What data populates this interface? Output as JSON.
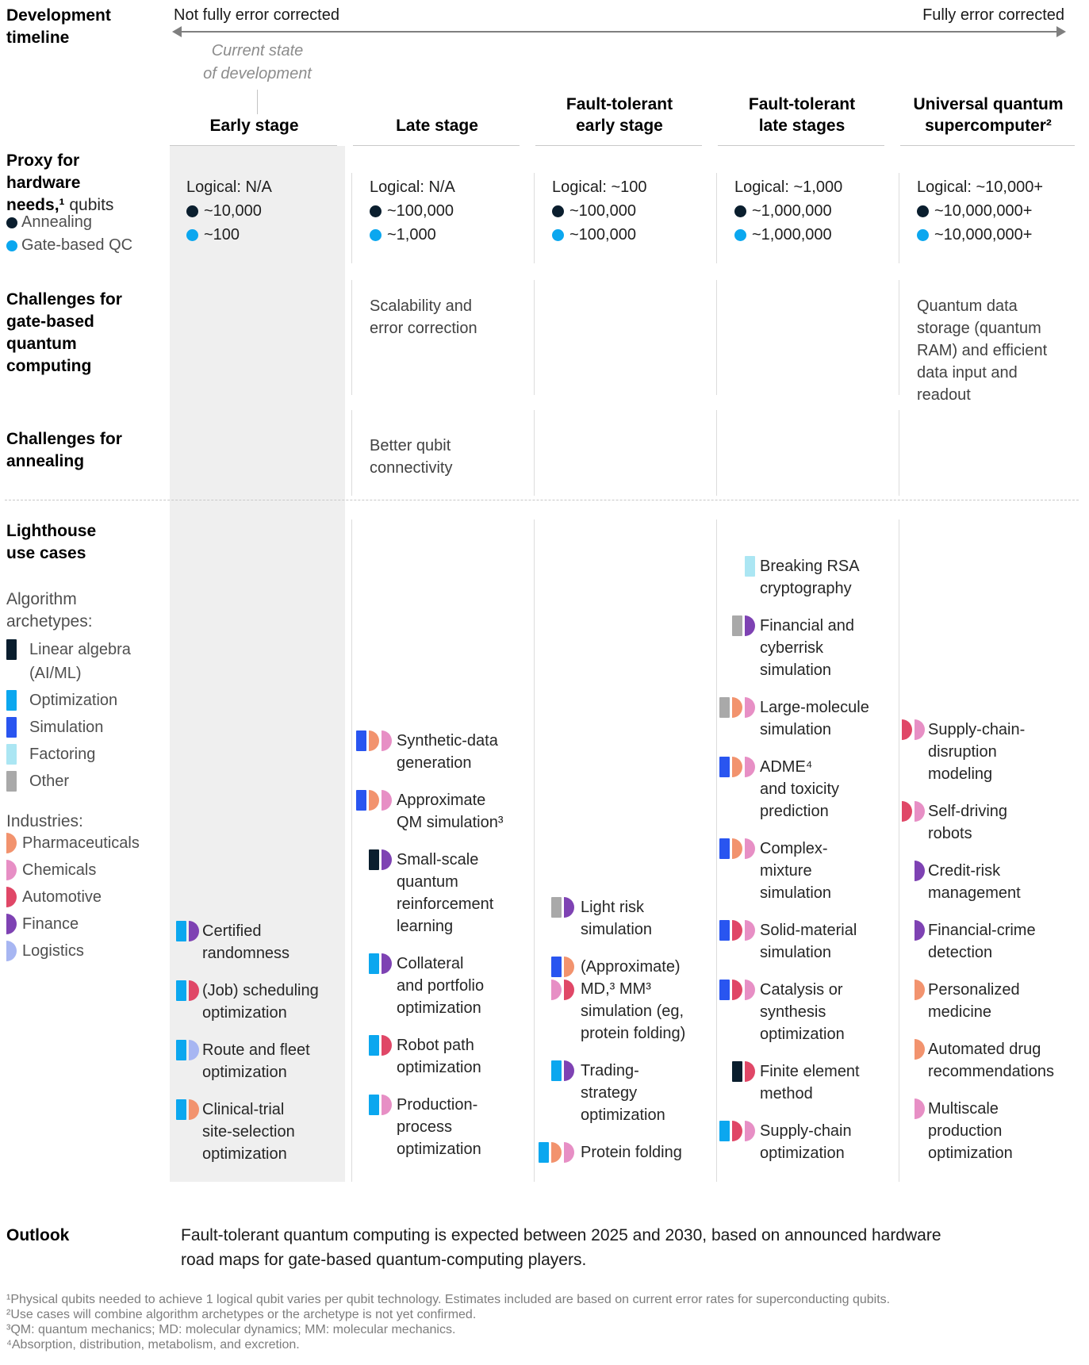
{
  "timeline": {
    "row_label": "Development\ntimeline",
    "left_end": "Not fully error corrected",
    "right_end": "Fully error corrected",
    "current_state": "Current state\nof development"
  },
  "hardware_row": {
    "label_bold": "Proxy for\nhardware\nneeds,¹",
    "label_regular": " qubits",
    "annealing_label": "Annealing",
    "gate_label": "Gate-based QC",
    "annealing_color": "#0a1e2e",
    "gate_color": "#0ba7ef"
  },
  "challenges_gate_label": "Challenges for\ngate-based\nquantum\ncomputing",
  "challenges_annealing_label": "Challenges for\nannealing",
  "columns": [
    {
      "id": "early",
      "header": "Early stage",
      "logical": "Logical: N/A",
      "annealing_qubits": "~10,000",
      "gate_qubits": "~100",
      "challenge_gate": "",
      "challenge_annealing": ""
    },
    {
      "id": "late",
      "header": "Late stage",
      "logical": "Logical: N/A",
      "annealing_qubits": "~100,000",
      "gate_qubits": "~1,000",
      "challenge_gate": "Scalability and\nerror correction",
      "challenge_annealing": "Better qubit\nconnectivity"
    },
    {
      "id": "ft_early",
      "header": "Fault-tolerant\nearly stage",
      "logical": "Logical: ~100",
      "annealing_qubits": "~100,000",
      "gate_qubits": "~100,000",
      "challenge_gate": "",
      "challenge_annealing": ""
    },
    {
      "id": "ft_late",
      "header": "Fault-tolerant\nlate stages",
      "logical": "Logical: ~1,000",
      "annealing_qubits": "~1,000,000",
      "gate_qubits": "~1,000,000",
      "challenge_gate": "",
      "challenge_annealing": ""
    },
    {
      "id": "universal",
      "header": "Universal quantum\nsupercomputer²",
      "logical": "Logical: ~10,000+",
      "annealing_qubits": "~10,000,000+",
      "gate_qubits": "~10,000,000+",
      "challenge_gate": "Quantum data\nstorage (quantum\nRAM) and efficient\ndata input and\nreadout",
      "challenge_annealing": ""
    }
  ],
  "lighthouse": {
    "row_label": "Lighthouse\nuse cases",
    "archetypes_title": "Algorithm\narchetypes:",
    "industries_title": "Industries:",
    "marker_defs": {
      "linear_algebra": {
        "label": "Linear algebra\n(AI/ML)",
        "color": "#0a1e2e",
        "shape": "rect"
      },
      "optimization": {
        "label": "Optimization",
        "color": "#0ba7ef",
        "shape": "rect"
      },
      "simulation": {
        "label": "Simulation",
        "color": "#2955f0",
        "shape": "rect"
      },
      "factoring": {
        "label": "Factoring",
        "color": "#abe6f3",
        "shape": "rect"
      },
      "other": {
        "label": "Other",
        "color": "#a9a9a9",
        "shape": "rect"
      },
      "pharmaceuticals": {
        "label": "Pharmaceuticals",
        "color": "#f2936e",
        "shape": "half"
      },
      "chemicals": {
        "label": "Chemicals",
        "color": "#e78fc5",
        "shape": "half"
      },
      "automotive": {
        "label": "Automotive",
        "color": "#e04767",
        "shape": "half"
      },
      "finance": {
        "label": "Finance",
        "color": "#7e42b3",
        "shape": "half"
      },
      "logistics": {
        "label": "Logistics",
        "color": "#a7b6f2",
        "shape": "half"
      }
    },
    "archetype_order": [
      "linear_algebra",
      "optimization",
      "simulation",
      "factoring",
      "other"
    ],
    "industry_order": [
      "pharmaceuticals",
      "chemicals",
      "automotive",
      "finance",
      "logistics"
    ],
    "use_cases": {
      "early": [
        {
          "text": "Certified\nrandomness",
          "markers": [
            [
              "optimization",
              "finance"
            ]
          ]
        },
        {
          "text": "(Job) scheduling\noptimization",
          "markers": [
            [
              "optimization",
              "automotive"
            ]
          ]
        },
        {
          "text": "Route and fleet\noptimization",
          "markers": [
            [
              "optimization",
              "logistics"
            ]
          ]
        },
        {
          "text": "Clinical-trial\nsite-selection\noptimization",
          "markers": [
            [
              "optimization",
              "pharmaceuticals"
            ]
          ]
        }
      ],
      "late": [
        {
          "text": "Synthetic-data\ngeneration",
          "markers": [
            [
              "simulation",
              "pharmaceuticals",
              "chemicals"
            ]
          ]
        },
        {
          "text": "Approximate\nQM simulation³",
          "markers": [
            [
              "simulation",
              "pharmaceuticals",
              "chemicals"
            ]
          ]
        },
        {
          "text": "Small-scale\nquantum\nreinforcement\nlearning",
          "markers": [
            [
              "linear_algebra",
              "finance"
            ]
          ]
        },
        {
          "text": "Collateral\nand portfolio\noptimization",
          "markers": [
            [
              "optimization",
              "finance"
            ]
          ]
        },
        {
          "text": "Robot path\noptimization",
          "markers": [
            [
              "optimization",
              "automotive"
            ]
          ]
        },
        {
          "text": "Production-\nprocess\noptimization",
          "markers": [
            [
              "optimization",
              "chemicals"
            ]
          ]
        }
      ],
      "ft_early": [
        {
          "text": "Light risk\nsimulation",
          "markers": [
            [
              "other",
              "finance"
            ]
          ]
        },
        {
          "text": "(Approximate)\nMD,³ MM³\nsimulation (eg,\nprotein folding)",
          "markers": [
            [
              "simulation",
              "pharmaceuticals"
            ],
            [
              "chemicals",
              "automotive"
            ]
          ]
        },
        {
          "text": "Trading-\nstrategy\noptimization",
          "markers": [
            [
              "optimization",
              "finance"
            ]
          ]
        },
        {
          "text": "Protein folding",
          "markers": [
            [
              "optimization",
              "pharmaceuticals",
              "chemicals"
            ]
          ]
        }
      ],
      "ft_late": [
        {
          "text": "Breaking RSA\ncryptography",
          "markers": [
            [
              "factoring"
            ]
          ]
        },
        {
          "text": "Financial and\ncyberrisk\nsimulation",
          "markers": [
            [
              "other",
              "finance"
            ]
          ]
        },
        {
          "text": "Large-molecule\nsimulation",
          "markers": [
            [
              "other",
              "pharmaceuticals",
              "chemicals"
            ]
          ]
        },
        {
          "text": "ADME⁴\nand toxicity\nprediction",
          "markers": [
            [
              "simulation",
              "pharmaceuticals",
              "chemicals"
            ]
          ]
        },
        {
          "text": "Complex-\nmixture\nsimulation",
          "markers": [
            [
              "simulation",
              "pharmaceuticals",
              "chemicals"
            ]
          ]
        },
        {
          "text": "Solid-material\nsimulation",
          "markers": [
            [
              "simulation",
              "automotive",
              "chemicals"
            ]
          ]
        },
        {
          "text": "Catalysis or\nsynthesis\noptimization",
          "markers": [
            [
              "simulation",
              "automotive",
              "chemicals"
            ]
          ]
        },
        {
          "text": "Finite element\nmethod",
          "markers": [
            [
              "linear_algebra",
              "automotive"
            ]
          ]
        },
        {
          "text": "Supply-chain\noptimization",
          "markers": [
            [
              "optimization",
              "automotive",
              "chemicals"
            ]
          ]
        }
      ],
      "universal": [
        {
          "text": "Supply-chain-\ndisruption\nmodeling",
          "markers": [
            [
              "automotive",
              "chemicals"
            ]
          ]
        },
        {
          "text": "Self-driving\nrobots",
          "markers": [
            [
              "automotive",
              "chemicals"
            ]
          ]
        },
        {
          "text": "Credit-risk\nmanagement",
          "markers": [
            [
              "finance"
            ]
          ]
        },
        {
          "text": "Financial-crime\ndetection",
          "markers": [
            [
              "finance"
            ]
          ]
        },
        {
          "text": "Personalized\nmedicine",
          "markers": [
            [
              "pharmaceuticals"
            ]
          ]
        },
        {
          "text": "Automated drug\nrecommendations",
          "markers": [
            [
              "pharmaceuticals"
            ]
          ]
        },
        {
          "text": "Multiscale\nproduction\noptimization",
          "markers": [
            [
              "chemicals"
            ]
          ]
        }
      ]
    }
  },
  "outlook": {
    "label": "Outlook",
    "text": "Fault-tolerant quantum computing is expected between 2025 and 2030, based on announced hardware\nroad maps for gate-based quantum-computing players."
  },
  "footnotes": [
    "¹Physical qubits needed to achieve 1 logical qubit varies per qubit technology. Estimates included are based on current error rates for superconducting qubits.",
    "²Use cases will combine algorithm archetypes or the archetype is not yet confirmed.",
    "³QM: quantum mechanics; MD: molecular dynamics; MM: molecular mechanics.",
    "⁴Absorption, distribution, metabolism, and excretion."
  ]
}
